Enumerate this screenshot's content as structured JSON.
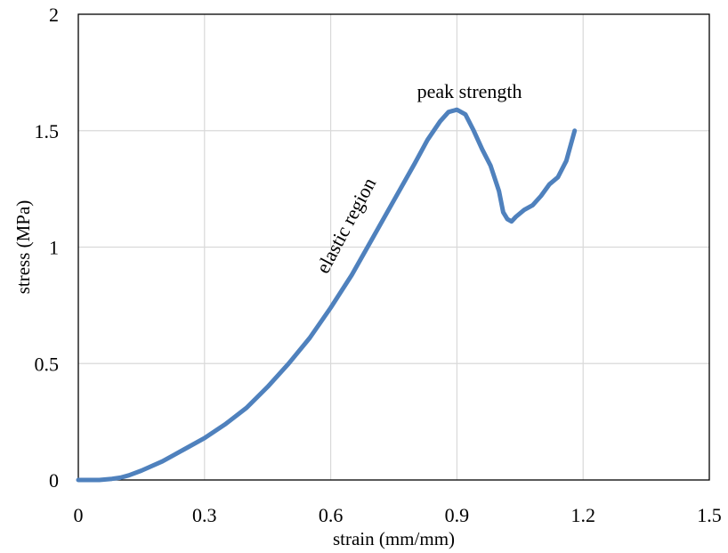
{
  "chart_data": {
    "type": "line",
    "title": "",
    "xlabel": "strain (mm/mm)",
    "ylabel": "stress (MPa)",
    "xlim": [
      0,
      1.5
    ],
    "ylim": [
      0,
      2
    ],
    "x_ticks": [
      "0",
      "0.3",
      "0.6",
      "0.9",
      "1.2",
      "1.5"
    ],
    "y_ticks": [
      "0",
      "0.5",
      "1",
      "1.5",
      "2"
    ],
    "grid": true,
    "legend": "none",
    "line_color": "#4f81bd",
    "series": [
      {
        "x": [
          0,
          0.05,
          0.08,
          0.1,
          0.12,
          0.15,
          0.2,
          0.25,
          0.3,
          0.35,
          0.4,
          0.45,
          0.5,
          0.55,
          0.6,
          0.65,
          0.7,
          0.75,
          0.8,
          0.83,
          0.86,
          0.88,
          0.9,
          0.92,
          0.94,
          0.96,
          0.98,
          1.0,
          1.01,
          1.02,
          1.03,
          1.04,
          1.06,
          1.08,
          1.1,
          1.12,
          1.14,
          1.16,
          1.18
        ],
        "y": [
          0,
          0,
          0.005,
          0.01,
          0.02,
          0.04,
          0.08,
          0.13,
          0.18,
          0.24,
          0.31,
          0.4,
          0.5,
          0.61,
          0.74,
          0.88,
          1.04,
          1.2,
          1.36,
          1.46,
          1.54,
          1.58,
          1.59,
          1.57,
          1.5,
          1.42,
          1.35,
          1.24,
          1.15,
          1.12,
          1.11,
          1.13,
          1.16,
          1.18,
          1.22,
          1.27,
          1.3,
          1.37,
          1.5
        ]
      }
    ],
    "annotations": [
      {
        "text": "peak strength",
        "x": 0.93,
        "y": 1.64
      },
      {
        "text": "elastic region",
        "x": 0.65,
        "y": 1.08,
        "angle": -62
      }
    ]
  }
}
